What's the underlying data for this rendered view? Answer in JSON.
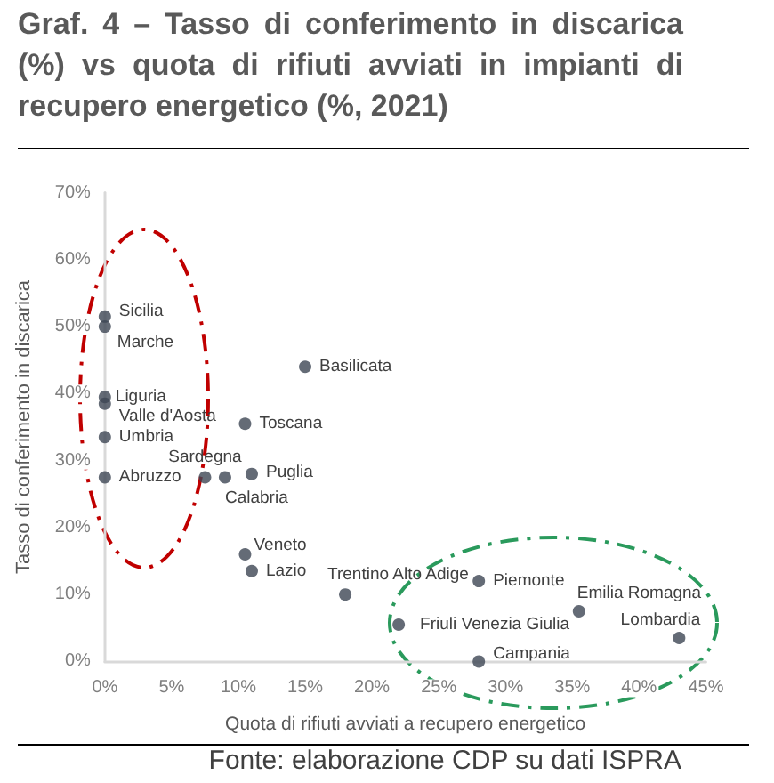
{
  "chart_data": {
    "type": "scatter",
    "title": "Graf. 4 – Tasso di conferimento in discarica (%) vs quota di rifiuti avviati in impianti di recupero energetico (%, 2021)",
    "xlabel": "Quota di rifiuti avviati a recupero energetico",
    "ylabel": "Tasso di conferimento in discarica",
    "x": [
      0,
      0,
      0,
      0,
      0,
      0,
      15,
      10.5,
      7.5,
      9,
      11,
      10.5,
      11,
      18,
      28,
      22,
      35.5,
      43,
      28
    ],
    "values": [
      51.5,
      50,
      39.5,
      38.5,
      33.5,
      27.5,
      44,
      35.5,
      27.5,
      27.5,
      28,
      16,
      13.5,
      10,
      12,
      5.5,
      7.5,
      3.5,
      0
    ],
    "color": "#3d4654",
    "marker": "circle",
    "grid": false,
    "xlim": [
      0,
      45
    ],
    "xticks": [
      {
        "value": 0,
        "label": "0%"
      },
      {
        "value": 5,
        "label": "5%"
      },
      {
        "value": 10,
        "label": "10%"
      },
      {
        "value": 15,
        "label": "15%"
      },
      {
        "value": 20,
        "label": "20%"
      },
      {
        "value": 25,
        "label": "25%"
      },
      {
        "value": 30,
        "label": "30%"
      },
      {
        "value": 35,
        "label": "35%"
      },
      {
        "value": 40,
        "label": "40%"
      },
      {
        "value": 45,
        "label": "45%"
      }
    ],
    "ylim": [
      0,
      70
    ],
    "yticks": [
      {
        "value": 0,
        "label": "0%"
      },
      {
        "value": 10,
        "label": "10%"
      },
      {
        "value": 20,
        "label": "20%"
      },
      {
        "value": 30,
        "label": "30%"
      },
      {
        "value": 40,
        "label": "40%"
      },
      {
        "value": 50,
        "label": "50%"
      },
      {
        "value": 60,
        "label": "60%"
      },
      {
        "value": 70,
        "label": "70%"
      }
    ],
    "annotations": [
      {
        "text": "Sicilia",
        "x": 0,
        "y": 51.5
      },
      {
        "text": "Marche",
        "x": 0,
        "y": 50
      },
      {
        "text": "Liguria",
        "x": 0,
        "y": 39.5
      },
      {
        "text": "Valle d'Aosta",
        "x": 0,
        "y": 38.5
      },
      {
        "text": "Umbria",
        "x": 0,
        "y": 33.5
      },
      {
        "text": "Abruzzo",
        "x": 0,
        "y": 27.5
      },
      {
        "text": "Basilicata",
        "x": 15,
        "y": 44
      },
      {
        "text": "Toscana",
        "x": 10.5,
        "y": 35.5
      },
      {
        "text": "Sardegna",
        "x": 7.5,
        "y": 27.5
      },
      {
        "text": "Calabria",
        "x": 9,
        "y": 27.5
      },
      {
        "text": "Puglia",
        "x": 11,
        "y": 28
      },
      {
        "text": "Veneto",
        "x": 10.5,
        "y": 16
      },
      {
        "text": "Lazio",
        "x": 11,
        "y": 13.5
      },
      {
        "text": "Trentino Alto Adige",
        "x": 18,
        "y": 10
      },
      {
        "text": "Piemonte",
        "x": 28,
        "y": 12
      },
      {
        "text": "Friuli Venezia Giulia",
        "x": 22,
        "y": 5.5
      },
      {
        "text": "Emilia Romagna",
        "x": 35.5,
        "y": 7.5
      },
      {
        "text": "Lombardia",
        "x": 43,
        "y": 3.5
      },
      {
        "text": "Campania",
        "x": 28,
        "y": 0
      },
      "Fonte: elaborazione CDP su dati ISPRA"
    ]
  }
}
